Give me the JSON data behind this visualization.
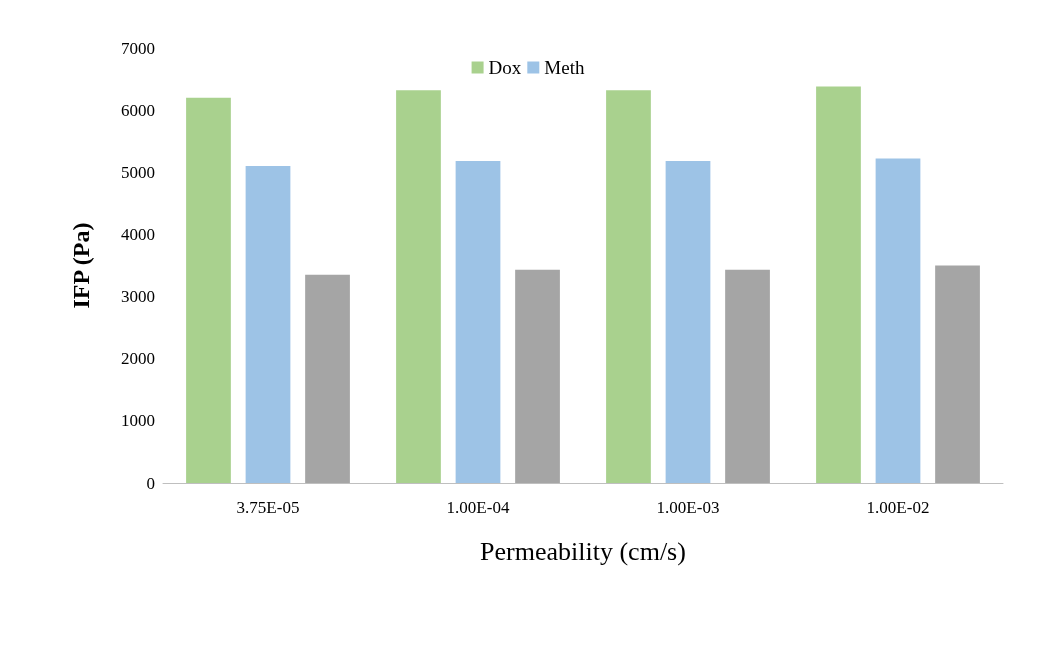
{
  "chart_data": {
    "type": "bar",
    "xlabel": "Permeability (cm/s)",
    "ylabel": "IFP (Pa)",
    "categories": [
      "3.75E-05",
      "1.00E-04",
      "1.00E-03",
      "1.00E-02"
    ],
    "series": [
      {
        "name": "Dox",
        "color": "#a9d18e",
        "values": [
          6200,
          6320,
          6320,
          6380
        ]
      },
      {
        "name": "Meth",
        "color": "#9dc3e6",
        "values": [
          5100,
          5180,
          5180,
          5220
        ]
      },
      {
        "color": "#a5a5a5",
        "values": [
          3350,
          3430,
          3430,
          3500
        ]
      }
    ],
    "ylim": [
      0,
      7000
    ],
    "yticks": [
      0,
      1000,
      2000,
      3000,
      4000,
      5000,
      6000,
      7000
    ],
    "grid": false,
    "legend": "top"
  }
}
